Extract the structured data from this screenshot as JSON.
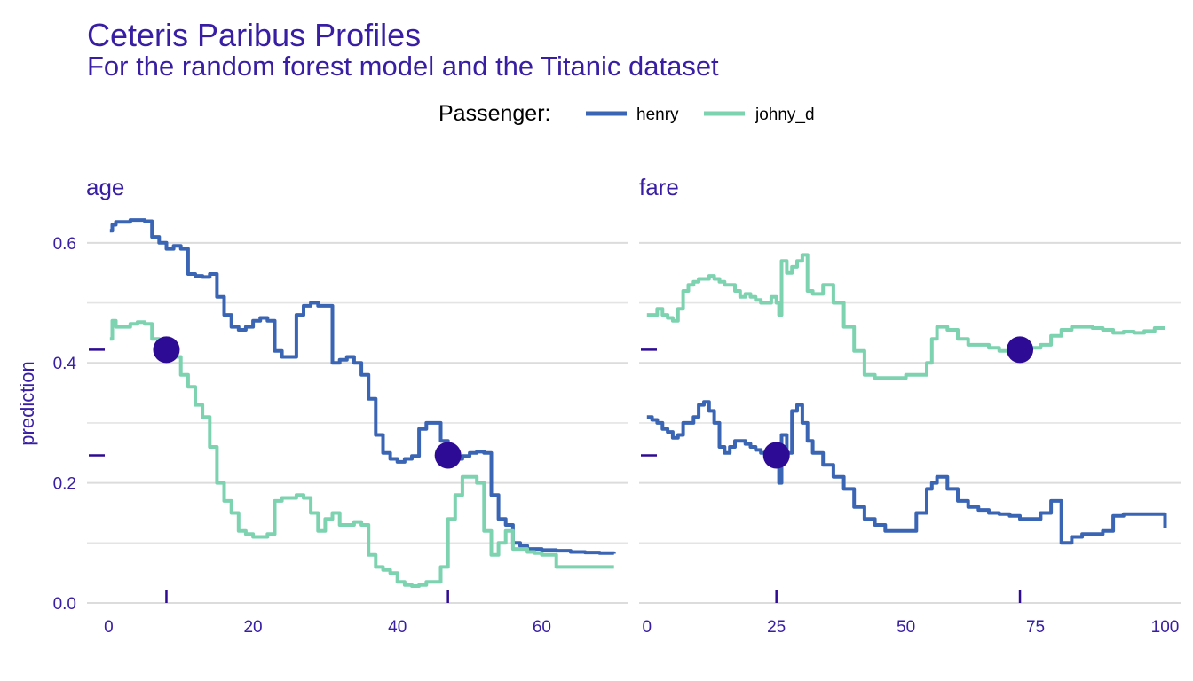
{
  "title": "Ceteris Paribus Profiles",
  "subtitle": "For the random forest model and the Titanic dataset",
  "legend": {
    "title": "Passenger:",
    "entries": [
      {
        "name": "henry",
        "color": "#3a64b4"
      },
      {
        "name": "johny_d",
        "color": "#7dd3b0"
      }
    ]
  },
  "point_color": "#2e0b94",
  "chart_data": {
    "type": "line",
    "ylabel": "prediction",
    "ylim": [
      0,
      0.65
    ],
    "yticks": [
      0.0,
      0.2,
      0.4,
      0.6
    ],
    "ytick_labels": [
      "0.0",
      "0.2",
      "0.4",
      "0.6"
    ],
    "facets": [
      {
        "variable": "age",
        "xlim": [
          -3,
          72
        ],
        "xticks": [
          0,
          20,
          40,
          60
        ],
        "xtick_labels": [
          "0",
          "20",
          "40",
          "60"
        ],
        "series": [
          {
            "name": "henry",
            "observation": {
              "x": 47,
              "y": 0.246
            },
            "x": [
              0.17,
              0.5,
              1,
              2,
              3,
              4,
              5,
              6,
              7,
              8,
              9,
              10,
              11,
              12,
              13,
              14,
              15,
              16,
              17,
              18,
              19,
              20,
              21,
              22,
              23,
              24,
              25,
              26,
              27,
              28,
              29,
              30,
              31,
              32,
              33,
              34,
              35,
              36,
              37,
              38,
              39,
              40,
              41,
              42,
              43,
              44,
              45,
              46,
              47,
              48,
              49,
              50,
              51,
              52,
              53,
              54,
              55,
              56,
              57,
              58,
              59,
              60,
              62,
              64,
              66,
              68,
              70
            ],
            "y": [
              0.62,
              0.63,
              0.635,
              0.635,
              0.638,
              0.638,
              0.636,
              0.61,
              0.6,
              0.59,
              0.595,
              0.59,
              0.548,
              0.545,
              0.543,
              0.548,
              0.51,
              0.48,
              0.46,
              0.455,
              0.46,
              0.47,
              0.475,
              0.47,
              0.42,
              0.41,
              0.41,
              0.48,
              0.495,
              0.5,
              0.495,
              0.495,
              0.4,
              0.405,
              0.41,
              0.4,
              0.38,
              0.34,
              0.28,
              0.25,
              0.24,
              0.235,
              0.24,
              0.245,
              0.29,
              0.3,
              0.3,
              0.27,
              0.246,
              0.24,
              0.245,
              0.25,
              0.252,
              0.25,
              0.18,
              0.14,
              0.13,
              0.1,
              0.095,
              0.09,
              0.09,
              0.088,
              0.087,
              0.085,
              0.084,
              0.083,
              0.082
            ]
          },
          {
            "name": "johny_d",
            "observation": {
              "x": 8,
              "y": 0.422
            },
            "x": [
              0.17,
              0.5,
              1,
              2,
              3,
              4,
              5,
              6,
              7,
              8,
              9,
              10,
              11,
              12,
              13,
              14,
              15,
              16,
              17,
              18,
              19,
              20,
              21,
              22,
              23,
              24,
              25,
              26,
              27,
              28,
              29,
              30,
              31,
              32,
              33,
              34,
              35,
              36,
              37,
              38,
              39,
              40,
              41,
              42,
              43,
              44,
              45,
              46,
              47,
              48,
              49,
              50,
              51,
              52,
              53,
              54,
              55,
              56,
              57,
              58,
              59,
              60,
              62,
              64,
              66,
              68,
              70
            ],
            "y": [
              0.44,
              0.47,
              0.46,
              0.46,
              0.465,
              0.468,
              0.465,
              0.44,
              0.43,
              0.422,
              0.41,
              0.38,
              0.36,
              0.33,
              0.31,
              0.26,
              0.2,
              0.17,
              0.15,
              0.12,
              0.115,
              0.11,
              0.11,
              0.115,
              0.17,
              0.175,
              0.175,
              0.18,
              0.175,
              0.15,
              0.12,
              0.14,
              0.15,
              0.13,
              0.13,
              0.135,
              0.13,
              0.08,
              0.06,
              0.055,
              0.05,
              0.035,
              0.03,
              0.028,
              0.03,
              0.035,
              0.035,
              0.06,
              0.14,
              0.18,
              0.21,
              0.21,
              0.2,
              0.12,
              0.08,
              0.1,
              0.12,
              0.09,
              0.09,
              0.085,
              0.083,
              0.08,
              0.06,
              0.06,
              0.06,
              0.06,
              0.06
            ]
          }
        ]
      },
      {
        "variable": "fare",
        "xlim": [
          -1.5,
          103
        ],
        "xticks": [
          0,
          25,
          50,
          75,
          100
        ],
        "xtick_labels": [
          "0",
          "25",
          "50",
          "75",
          "100"
        ],
        "series": [
          {
            "name": "henry",
            "observation": {
              "x": 25,
              "y": 0.246
            },
            "x": [
              0,
              1,
              2,
              3,
              4,
              5,
              6,
              7,
              8,
              9,
              10,
              11,
              12,
              13,
              14,
              15,
              16,
              17,
              18,
              19,
              20,
              21,
              22,
              23,
              24,
              25,
              25.5,
              26,
              27,
              28,
              29,
              30,
              31,
              32,
              34,
              36,
              38,
              40,
              42,
              44,
              46,
              48,
              50,
              52,
              54,
              55,
              56,
              58,
              60,
              62,
              64,
              66,
              68,
              70,
              72,
              74,
              76,
              78,
              80,
              82,
              84,
              86,
              88,
              90,
              92,
              94,
              96,
              98,
              100
            ],
            "y": [
              0.31,
              0.305,
              0.3,
              0.29,
              0.285,
              0.275,
              0.28,
              0.3,
              0.3,
              0.31,
              0.33,
              0.335,
              0.32,
              0.3,
              0.26,
              0.25,
              0.26,
              0.27,
              0.27,
              0.265,
              0.26,
              0.255,
              0.25,
              0.25,
              0.245,
              0.246,
              0.2,
              0.28,
              0.25,
              0.32,
              0.33,
              0.3,
              0.27,
              0.25,
              0.23,
              0.21,
              0.19,
              0.16,
              0.14,
              0.13,
              0.12,
              0.12,
              0.12,
              0.15,
              0.19,
              0.2,
              0.21,
              0.19,
              0.17,
              0.16,
              0.155,
              0.15,
              0.148,
              0.145,
              0.14,
              0.14,
              0.15,
              0.17,
              0.1,
              0.11,
              0.115,
              0.115,
              0.12,
              0.145,
              0.148,
              0.148,
              0.148,
              0.148,
              0.125
            ]
          },
          {
            "name": "johny_d",
            "observation": {
              "x": 72,
              "y": 0.422
            },
            "x": [
              0,
              1,
              2,
              3,
              4,
              5,
              6,
              7,
              8,
              9,
              10,
              11,
              12,
              13,
              14,
              15,
              16,
              17,
              18,
              19,
              20,
              21,
              22,
              23,
              24,
              25,
              25.5,
              26,
              27,
              28,
              29,
              30,
              31,
              32,
              34,
              36,
              38,
              40,
              42,
              44,
              46,
              48,
              50,
              52,
              54,
              55,
              56,
              58,
              60,
              62,
              64,
              66,
              68,
              70,
              72,
              74,
              76,
              78,
              80,
              82,
              84,
              86,
              88,
              90,
              92,
              94,
              96,
              98,
              100
            ],
            "y": [
              0.48,
              0.48,
              0.49,
              0.48,
              0.475,
              0.47,
              0.49,
              0.52,
              0.53,
              0.535,
              0.54,
              0.54,
              0.545,
              0.54,
              0.535,
              0.53,
              0.53,
              0.52,
              0.51,
              0.515,
              0.51,
              0.505,
              0.5,
              0.5,
              0.51,
              0.5,
              0.48,
              0.57,
              0.55,
              0.56,
              0.57,
              0.58,
              0.52,
              0.515,
              0.53,
              0.5,
              0.46,
              0.42,
              0.38,
              0.375,
              0.375,
              0.375,
              0.38,
              0.38,
              0.4,
              0.44,
              0.46,
              0.455,
              0.44,
              0.43,
              0.43,
              0.425,
              0.42,
              0.42,
              0.422,
              0.425,
              0.43,
              0.445,
              0.455,
              0.46,
              0.46,
              0.458,
              0.455,
              0.45,
              0.452,
              0.45,
              0.453,
              0.458,
              0.458
            ]
          }
        ]
      }
    ]
  }
}
